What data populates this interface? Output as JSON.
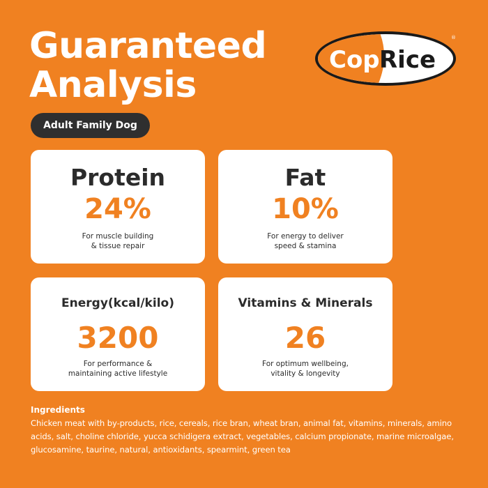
{
  "title_line1": "Guaranteed",
  "title_line2": "Analysis",
  "product": "Adult Family Dog",
  "logo": {
    "text_left": "Cop",
    "text_right": "Rice",
    "mark": "®",
    "colors": {
      "orange": "#F08121",
      "dark": "#2b2b2b"
    }
  },
  "cards": [
    {
      "title": "Protein",
      "value": "24%",
      "desc": "For muscle building\n& tissue repair"
    },
    {
      "title": "Fat",
      "value": "10%",
      "desc": "For energy to deliver\nspeed & stamina"
    },
    {
      "title": "Energy(kcal/kilo)",
      "value": "3200",
      "desc": "For performance &\nmaintaining active lifestyle"
    },
    {
      "title": "Vitamins & Minerals",
      "value": "26",
      "desc": "For optimum wellbeing,\nvitality & longevity"
    }
  ],
  "ingredients": {
    "heading": "Ingredients",
    "text": "Chicken meat with by-products, rice, cereals, rice bran, wheat bran, animal fat, vitamins, minerals, amino acids, salt, choline chloride, yucca schidigera extract, vegetables, calcium propionate, marine microalgae, glucosamine, taurine, natural, antioxidants, spearmint, green tea"
  },
  "colors": {
    "background": "#F08121",
    "accent": "#F08121",
    "pill": "#2f2f2f"
  }
}
